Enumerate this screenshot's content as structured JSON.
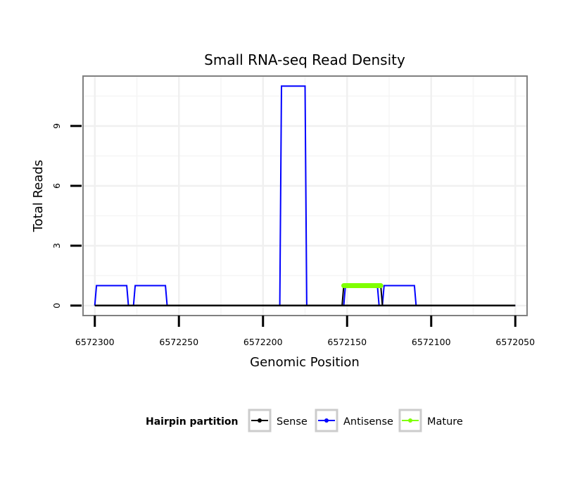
{
  "chart_data": {
    "type": "line",
    "title": "Small RNA-seq Read Density",
    "xlabel": "Genomic Position",
    "ylabel": "Total Reads",
    "x_reversed": true,
    "xlim": [
      6572307,
      6572043
    ],
    "ylim": [
      -0.5,
      11.5
    ],
    "x_ticks": [
      6572300,
      6572250,
      6572200,
      6572150,
      6572100,
      6572050
    ],
    "x_tick_labels": [
      "6572300",
      "6572250",
      "6572200",
      "6572150",
      "6572100",
      "6572050"
    ],
    "y_ticks": [
      0,
      3,
      6,
      9
    ],
    "y_tick_labels": [
      "0",
      "3",
      "6",
      "9"
    ],
    "grid": true,
    "legend": {
      "title": "Hairpin partition",
      "position": "bottom",
      "entries": [
        "Sense",
        "Antisense",
        "Mature"
      ]
    },
    "series": [
      {
        "name": "Sense",
        "color": "#000000",
        "points": [
          [
            6572300,
            0
          ],
          [
            6572050,
            0
          ]
        ]
      },
      {
        "name": "Antisense",
        "color": "#0000ff",
        "points": [
          [
            6572300,
            0
          ],
          [
            6572299,
            1
          ],
          [
            6572281,
            1
          ],
          [
            6572280,
            0
          ],
          [
            6572277,
            0
          ],
          [
            6572276,
            1
          ],
          [
            6572258,
            1
          ],
          [
            6572257,
            0
          ],
          [
            6572190,
            0
          ],
          [
            6572189,
            11
          ],
          [
            6572175,
            11
          ],
          [
            6572174,
            0
          ],
          [
            6572152,
            0
          ],
          [
            6572151,
            1
          ],
          [
            6572132,
            1
          ],
          [
            6572131,
            0
          ],
          [
            6572129,
            0
          ],
          [
            6572128,
            1
          ],
          [
            6572110,
            1
          ],
          [
            6572109,
            0
          ],
          [
            6572050,
            0
          ]
        ]
      },
      {
        "name": "Mature",
        "color": "#7fff00",
        "points": [
          [
            6572152,
            1
          ],
          [
            6572130,
            1
          ]
        ]
      }
    ],
    "sense_bump": {
      "name": "Sense",
      "color": "#000000",
      "points": [
        [
          6572153,
          0
        ],
        [
          6572152,
          1
        ],
        [
          6572130,
          1
        ],
        [
          6572129,
          0
        ]
      ]
    }
  }
}
